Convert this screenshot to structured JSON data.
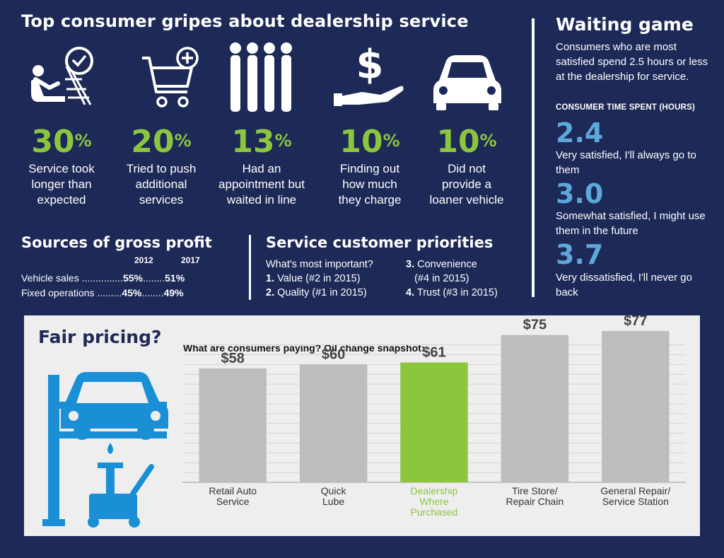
{
  "gripes": {
    "title": "Top consumer gripes about dealership service",
    "items": [
      {
        "pct": "30",
        "desc1": "Service took",
        "desc2": "longer than",
        "desc3": "expected",
        "icon": "waiting-person-clock-icon"
      },
      {
        "pct": "20",
        "desc1": "Tried to push",
        "desc2": "additional",
        "desc3": "services",
        "icon": "shopping-cart-plus-icon"
      },
      {
        "pct": "13",
        "desc1": "Had an",
        "desc2": "appointment but",
        "desc3": "waited in line",
        "icon": "people-in-line-icon"
      },
      {
        "pct": "10",
        "desc1": "Finding out",
        "desc2": "how much",
        "desc3": "they charge",
        "icon": "dollar-hand-icon"
      },
      {
        "pct": "10",
        "desc1": "Did not",
        "desc2": "provide a",
        "desc3": "loaner vehicle",
        "icon": "car-front-icon"
      }
    ],
    "pct_sign": "%"
  },
  "waiting": {
    "title": "Waiting game",
    "intro": "Consumers who are most satisfied spend 2.5 hours or less at the dealership for service.",
    "subtitle": "CONSUMER TIME SPENT (HOURS)",
    "stats": [
      {
        "value": "2.4",
        "label": "Very satisfied, I'll always go to them"
      },
      {
        "value": "3.0",
        "label": "Somewhat satisfied, I might use them in the future"
      },
      {
        "value": "3.7",
        "label": "Very dissatisfied, I'll never go back"
      }
    ]
  },
  "profit": {
    "title": "Sources of gross profit",
    "year1": "2012",
    "year2": "2017",
    "rows": [
      {
        "label": "Vehicle sales",
        "dots1": "...............",
        "v1": "55%",
        "dots2": "........",
        "v2": "51%"
      },
      {
        "label": "Fixed operations",
        "dots1": ".........",
        "v1": "45%",
        "dots2": "........",
        "v2": "49%"
      }
    ]
  },
  "priorities": {
    "title": "Service customer priorities",
    "question": "What's most important?",
    "items": [
      {
        "num": "1.",
        "text": "Value (#2 in 2015)"
      },
      {
        "num": "2.",
        "text": "Quality (#1 in 2015)"
      },
      {
        "num": "3.",
        "text": "Convenience",
        "text2": "(#4 in 2015)"
      },
      {
        "num": "4.",
        "text": "Trust (#3 in 2015)"
      }
    ]
  },
  "fair": {
    "title": "Fair pricing?",
    "icon": "car-lift-oil-change-icon"
  },
  "chart_data": {
    "type": "bar",
    "title": "What are consumers paying? Oil change snapshot:",
    "categories": [
      [
        "Retail Auto",
        "Service"
      ],
      [
        "Quick",
        "Lube"
      ],
      [
        "Dealership",
        "Where",
        "Purchased"
      ],
      [
        "Tire Store/",
        "Repair Chain"
      ],
      [
        "General Repair/",
        "Service Station"
      ]
    ],
    "values": [
      58,
      60,
      61,
      75,
      77
    ],
    "value_labels": [
      "$58",
      "$60",
      "$61",
      "$75",
      "$77"
    ],
    "highlight_index": 2,
    "ylim": [
      0,
      90
    ],
    "grid": true,
    "colors": {
      "bar": "#bdbdbd",
      "highlight": "#8cc63f",
      "grid": "#d4d4d4",
      "label": "#333333",
      "value": "#444444"
    }
  },
  "colors": {
    "background": "#1d2957",
    "accent_green": "#8cc63f",
    "accent_blue": "#5fa8dc",
    "panel": "#eeeeee",
    "lift_blue": "#1a8fd6"
  }
}
